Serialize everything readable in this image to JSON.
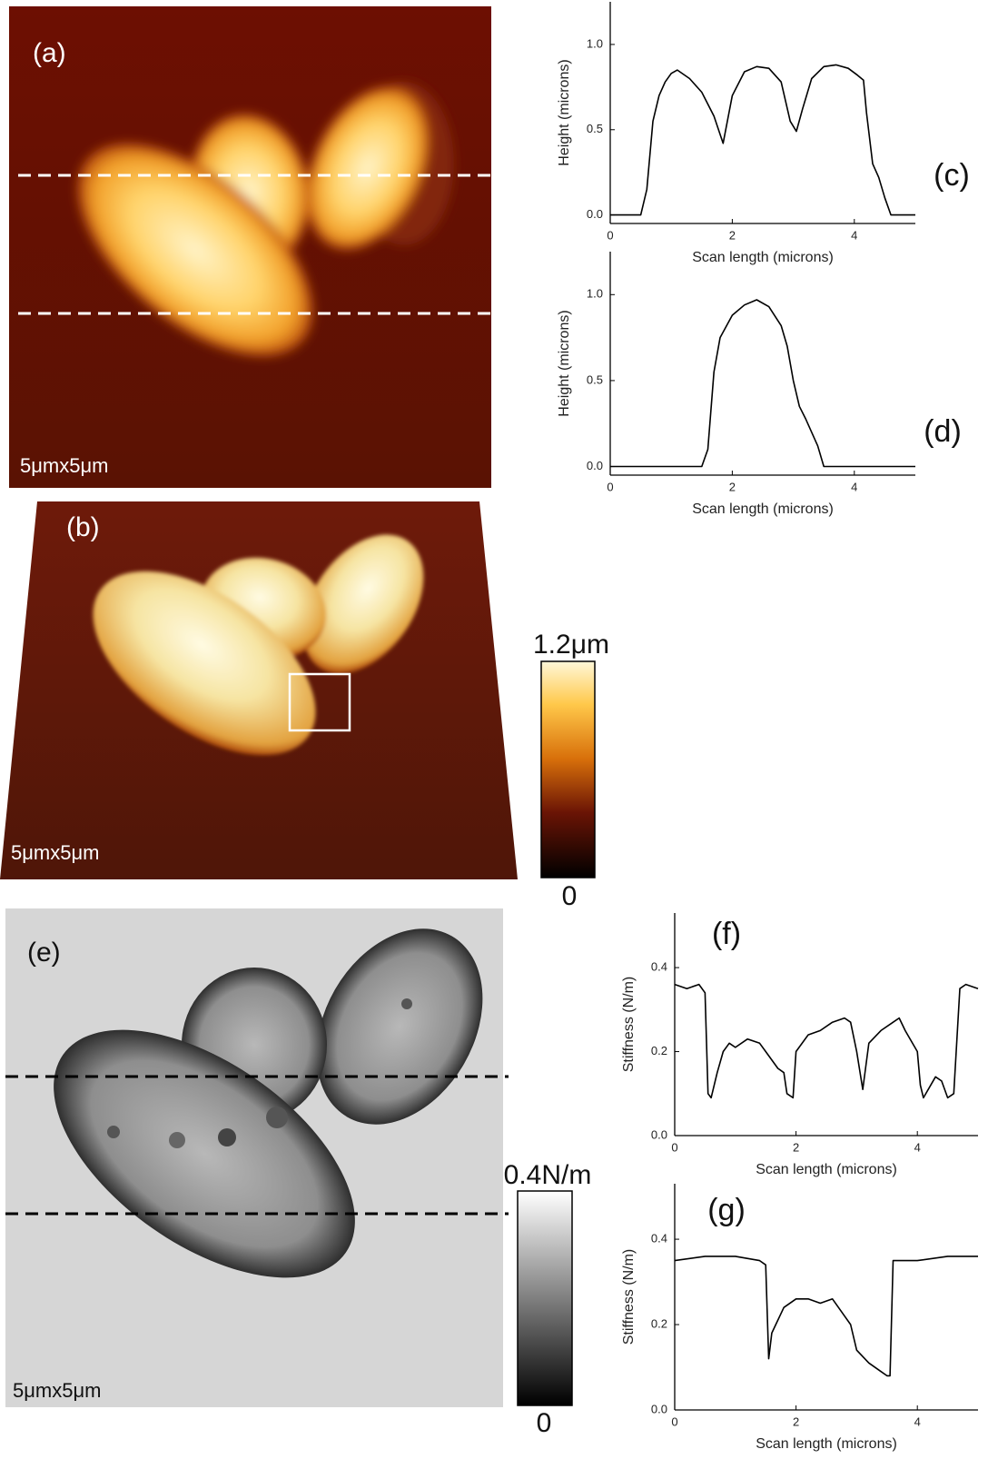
{
  "panels": {
    "a": {
      "label": "(a)",
      "scale": "5μmx5μm"
    },
    "b": {
      "label": "(b)",
      "scale": "5μmx5μm",
      "colorbar_top": "1.2μm",
      "colorbar_bottom": "0"
    },
    "e": {
      "label": "(e)",
      "scale": "5μmx5μm",
      "colorbar_top": "0.4N/m",
      "colorbar_bottom": "0"
    }
  },
  "chart_data": [
    {
      "type": "line",
      "panel_label": "(c)",
      "xlabel": "Scan length (microns)",
      "ylabel": "Height (microns)",
      "x": [
        0,
        0.5,
        0.6,
        0.7,
        0.8,
        0.9,
        1.0,
        1.1,
        1.3,
        1.5,
        1.7,
        1.85,
        2.0,
        2.2,
        2.4,
        2.6,
        2.8,
        2.95,
        3.05,
        3.15,
        3.3,
        3.5,
        3.7,
        3.9,
        4.05,
        4.15,
        4.2,
        4.3,
        4.4,
        4.5,
        4.6,
        5.0
      ],
      "series": [
        {
          "color": "#000000",
          "values": [
            0,
            0,
            0.15,
            0.55,
            0.7,
            0.78,
            0.83,
            0.85,
            0.8,
            0.72,
            0.58,
            0.42,
            0.7,
            0.84,
            0.87,
            0.86,
            0.78,
            0.55,
            0.49,
            0.62,
            0.8,
            0.87,
            0.88,
            0.86,
            0.82,
            0.79,
            0.6,
            0.3,
            0.22,
            0.1,
            0,
            0
          ]
        }
      ],
      "xlim": [
        0,
        5
      ],
      "ylim": [
        -0.05,
        1.25
      ],
      "xticks": [
        0,
        2,
        4
      ],
      "yticks": [
        {
          "value": 0,
          "label": "0.0"
        },
        {
          "value": 0.5,
          "label": "0.5"
        },
        {
          "value": 1,
          "label": "1.0"
        }
      ]
    },
    {
      "type": "line",
      "panel_label": "(d)",
      "xlabel": "Scan length (microns)",
      "ylabel": "Height (microns)",
      "x": [
        0,
        1.5,
        1.6,
        1.7,
        1.8,
        2.0,
        2.2,
        2.4,
        2.6,
        2.8,
        2.9,
        3.0,
        3.1,
        3.2,
        3.4,
        3.5,
        5.0
      ],
      "series": [
        {
          "color": "#000000",
          "values": [
            0,
            0,
            0.1,
            0.55,
            0.75,
            0.88,
            0.94,
            0.97,
            0.93,
            0.82,
            0.7,
            0.5,
            0.35,
            0.28,
            0.12,
            0,
            0
          ]
        }
      ],
      "xlim": [
        0,
        5
      ],
      "ylim": [
        -0.05,
        1.25
      ],
      "xticks": [
        0,
        2,
        4
      ],
      "yticks": [
        {
          "value": 0,
          "label": "0.0"
        },
        {
          "value": 0.5,
          "label": "0.5"
        },
        {
          "value": 1,
          "label": "1.0"
        }
      ]
    },
    {
      "type": "line",
      "panel_label": "(f)",
      "xlabel": "Scan length (microns)",
      "ylabel": "Stiffness (N/m)",
      "x": [
        0,
        0.2,
        0.4,
        0.5,
        0.55,
        0.6,
        0.7,
        0.8,
        0.9,
        1.0,
        1.2,
        1.4,
        1.5,
        1.7,
        1.8,
        1.85,
        1.95,
        2.0,
        2.2,
        2.4,
        2.6,
        2.8,
        2.9,
        3.0,
        3.1,
        3.2,
        3.4,
        3.6,
        3.7,
        3.8,
        4.0,
        4.05,
        4.1,
        4.3,
        4.4,
        4.5,
        4.6,
        4.7,
        4.8,
        5.0
      ],
      "series": [
        {
          "color": "#000000",
          "values": [
            0.36,
            0.35,
            0.36,
            0.34,
            0.1,
            0.09,
            0.15,
            0.2,
            0.22,
            0.21,
            0.23,
            0.22,
            0.2,
            0.16,
            0.15,
            0.1,
            0.09,
            0.2,
            0.24,
            0.25,
            0.27,
            0.28,
            0.27,
            0.2,
            0.11,
            0.22,
            0.25,
            0.27,
            0.28,
            0.25,
            0.2,
            0.12,
            0.09,
            0.14,
            0.13,
            0.09,
            0.1,
            0.35,
            0.36,
            0.35
          ]
        }
      ],
      "xlim": [
        0,
        5
      ],
      "ylim": [
        0,
        0.53
      ],
      "xticks": [
        0,
        2,
        4
      ],
      "yticks": [
        {
          "value": 0,
          "label": "0.0"
        },
        {
          "value": 0.2,
          "label": "0.2"
        },
        {
          "value": 0.4,
          "label": "0.4"
        }
      ]
    },
    {
      "type": "line",
      "panel_label": "(g)",
      "xlabel": "Scan length (microns)",
      "ylabel": "Stiffness (N/m)",
      "x": [
        0,
        0.5,
        1.0,
        1.4,
        1.5,
        1.55,
        1.6,
        1.8,
        2.0,
        2.2,
        2.4,
        2.6,
        2.8,
        2.9,
        3.0,
        3.2,
        3.4,
        3.5,
        3.55,
        3.6,
        4.0,
        4.5,
        5.0
      ],
      "series": [
        {
          "color": "#000000",
          "values": [
            0.35,
            0.36,
            0.36,
            0.35,
            0.34,
            0.12,
            0.18,
            0.24,
            0.26,
            0.26,
            0.25,
            0.26,
            0.22,
            0.2,
            0.14,
            0.11,
            0.09,
            0.08,
            0.08,
            0.35,
            0.35,
            0.36,
            0.36
          ]
        }
      ],
      "xlim": [
        0,
        5
      ],
      "ylim": [
        0,
        0.53
      ],
      "xticks": [
        0,
        2,
        4
      ],
      "yticks": [
        {
          "value": 0,
          "label": "0.0"
        },
        {
          "value": 0.2,
          "label": "0.2"
        },
        {
          "value": 0.4,
          "label": "0.4"
        }
      ]
    }
  ]
}
